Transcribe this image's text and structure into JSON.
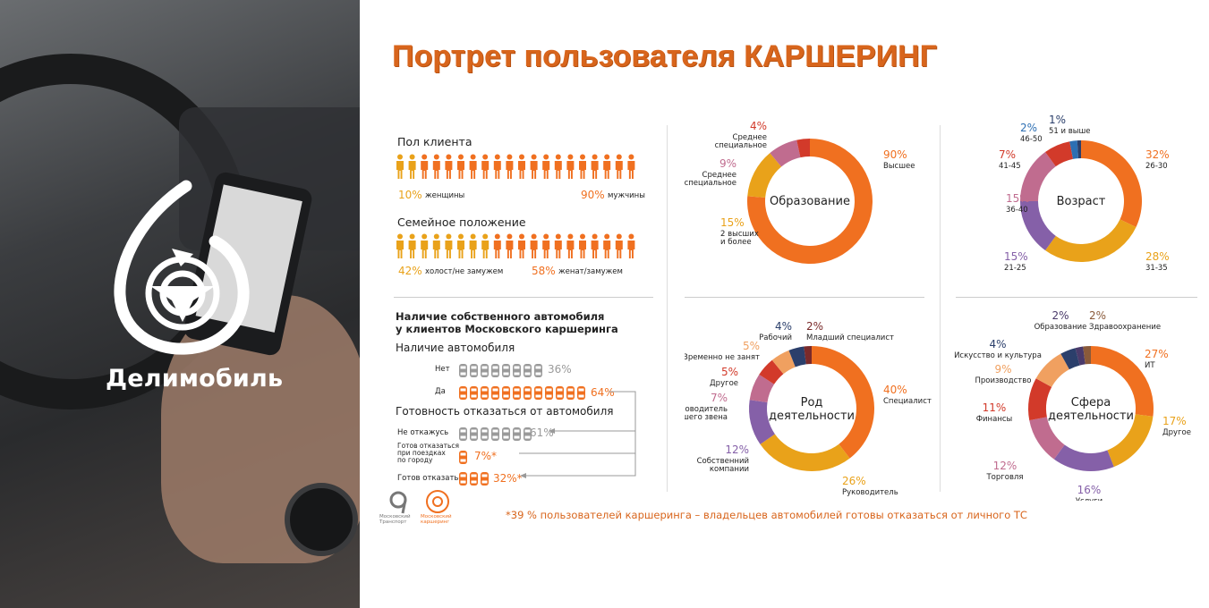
{
  "brand": {
    "name": "Делимобиль"
  },
  "title": "Портрет пользователя КАРШЕРИНГ",
  "footnote": "*39 % пользователей каршеринга – владельцев автомобилей готовы отказаться от личного ТС",
  "footer_logos": {
    "left": "Московский Транспорт",
    "right": "Московский каршеринг"
  },
  "colors": {
    "orange": "#f07020",
    "yellow": "#e9a21a",
    "gray": "#9a9a9a",
    "title": "#d8651c"
  },
  "gender": {
    "heading": "Пол клиента",
    "women_pct": "10%",
    "women_label": "женщины",
    "men_pct": "90%",
    "men_label": "мужчины",
    "icons_total": 20,
    "icons_highlight": 2
  },
  "family": {
    "heading": "Семейное положение",
    "single_pct": "42%",
    "single_label": "холост/не замужем",
    "married_pct": "58%",
    "married_label": "женат/замужем",
    "icons_total": 20,
    "icons_highlight": 8
  },
  "car": {
    "heading": "Наличие собственного автомобиля у клиентов Московского каршеринга",
    "heading_line1": "Наличие собственного автомобиля",
    "heading_line2": "у клиентов Московского каршеринга",
    "ownership_heading": "Наличие автомобиля",
    "no_label": "Нет",
    "no_pct": "36%",
    "yes_label": "Да",
    "yes_pct": "64%",
    "readiness_heading": "Готовность отказаться от автомобиля",
    "wont_label": "Не откажусь",
    "wont_pct": "61%",
    "city_label_1": "Готов отказаться",
    "city_label_2": "при поездках",
    "city_label_3": "по городу",
    "city_pct": "7%*",
    "ready_label": "Готов отказаться",
    "ready_pct": "32%*"
  },
  "chart_data": [
    {
      "type": "pie",
      "title": "Образование",
      "slices": [
        {
          "label": "Высшее",
          "value": 90,
          "pct": "90%",
          "color": "#f07020"
        },
        {
          "label": "2 высших и более",
          "value": 15,
          "pct": "15%",
          "color": "#e9a21a"
        },
        {
          "label": "Среднее специальное",
          "value": 9,
          "pct": "9%",
          "color": "#c06c8f"
        },
        {
          "label": "Среднее специальное",
          "value": 4,
          "pct": "4%",
          "color": "#d23a2a"
        }
      ]
    },
    {
      "type": "pie",
      "title": "Возраст",
      "slices": [
        {
          "label": "26-30",
          "value": 32,
          "pct": "32%",
          "color": "#f07020"
        },
        {
          "label": "31-35",
          "value": 28,
          "pct": "28%",
          "color": "#e9a21a"
        },
        {
          "label": "21-25",
          "value": 15,
          "pct": "15%",
          "color": "#8560a8"
        },
        {
          "label": "36-40",
          "value": 15,
          "pct": "15%",
          "color": "#c06c8f"
        },
        {
          "label": "41-45",
          "value": 7,
          "pct": "7%",
          "color": "#d23a2a"
        },
        {
          "label": "46-50",
          "value": 2,
          "pct": "2%",
          "color": "#2d6fb3"
        },
        {
          "label": "51 и выше",
          "value": 1,
          "pct": "1%",
          "color": "#2b3f6b"
        }
      ]
    },
    {
      "type": "pie",
      "title": "Род деятельности",
      "slices": [
        {
          "label": "Специалист",
          "value": 40,
          "pct": "40%",
          "color": "#f07020"
        },
        {
          "label": "Руководитель",
          "value": 26,
          "pct": "26%",
          "color": "#e9a21a"
        },
        {
          "label": "Собственник компании",
          "value": 12,
          "pct": "12%",
          "color": "#8560a8"
        },
        {
          "label": "Руководитель высшего звена",
          "value": 7,
          "pct": "7%",
          "color": "#c06c8f"
        },
        {
          "label": "Другое",
          "value": 5,
          "pct": "5%",
          "color": "#d23a2a"
        },
        {
          "label": "Временно не занят",
          "value": 5,
          "pct": "5%",
          "color": "#f0a060"
        },
        {
          "label": "Рабочий",
          "value": 4,
          "pct": "4%",
          "color": "#2b3f6b"
        },
        {
          "label": "Младший специалист",
          "value": 2,
          "pct": "2%",
          "color": "#7a2a2a"
        }
      ]
    },
    {
      "type": "pie",
      "title": "Сфера деятельности",
      "slices": [
        {
          "label": "ИТ",
          "value": 27,
          "pct": "27%",
          "color": "#f07020"
        },
        {
          "label": "Другое",
          "value": 17,
          "pct": "17%",
          "color": "#e9a21a"
        },
        {
          "label": "Услуги",
          "value": 16,
          "pct": "16%",
          "color": "#8560a8"
        },
        {
          "label": "Торговля",
          "value": 12,
          "pct": "12%",
          "color": "#c06c8f"
        },
        {
          "label": "Финансы",
          "value": 11,
          "pct": "11%",
          "color": "#d23a2a"
        },
        {
          "label": "Производство",
          "value": 9,
          "pct": "9%",
          "color": "#f0a060"
        },
        {
          "label": "Искусство и культура",
          "value": 4,
          "pct": "4%",
          "color": "#2b3f6b"
        },
        {
          "label": "Образование",
          "value": 2,
          "pct": "2%",
          "color": "#4a3a6a"
        },
        {
          "label": "Здравоохранение",
          "value": 2,
          "pct": "2%",
          "color": "#8a5a3a"
        }
      ]
    }
  ]
}
